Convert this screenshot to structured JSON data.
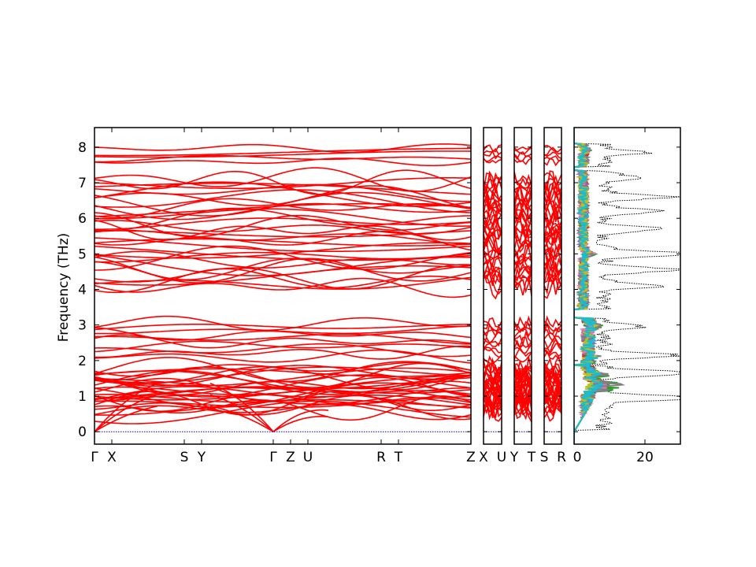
{
  "chart_data": [
    {
      "type": "line",
      "panel": "band-structure",
      "title": "",
      "xlabel": "",
      "ylabel": "Frequency (THz)",
      "ylim": [
        -0.35,
        8.55
      ],
      "yticks": [
        0,
        1,
        2,
        3,
        4,
        5,
        6,
        7,
        8
      ],
      "grid": false,
      "line_color": "#ff0000",
      "zero_line_color": "#0000cc",
      "segments": [
        {
          "path": [
            "Γ",
            "X",
            "S",
            "Y",
            "Γ"
          ],
          "tick_labels": [
            "Γ",
            "X",
            "S",
            "Y",
            "Γ"
          ]
        },
        {
          "path": [
            "Z",
            "U",
            "R",
            "T",
            "Z"
          ],
          "tick_labels": [
            "Z",
            "U",
            "R",
            "T",
            "Z"
          ]
        },
        {
          "path": [
            "X",
            "U"
          ],
          "tick_labels": [
            "X",
            "U"
          ]
        },
        {
          "path": [
            "Y",
            "T"
          ],
          "tick_labels": [
            "Y",
            "T"
          ]
        },
        {
          "path": [
            "S",
            "R"
          ],
          "tick_labels": [
            "S",
            "R"
          ]
        }
      ],
      "x_tick_labels": [
        "Γ",
        "X",
        "S",
        "Y",
        "Γ",
        "Z",
        "U",
        "R",
        "T",
        "Z",
        "X",
        "U",
        "Y",
        "T",
        "S",
        "R"
      ],
      "band_groups": {
        "acoustic_and_low_optical": {
          "frequency_range": [
            0,
            1.85
          ]
        },
        "mid_optical": {
          "frequency_range": [
            1.9,
            3.2
          ]
        },
        "gap": {
          "frequency_range": [
            3.2,
            3.9
          ]
        },
        "upper_optical": {
          "frequency_range": [
            3.4,
            7.3
          ]
        },
        "top_optical": {
          "frequency_range": [
            7.5,
            8.1
          ]
        }
      }
    },
    {
      "type": "line",
      "panel": "density-of-states",
      "title": "",
      "xlabel": "",
      "ylabel": "",
      "xlim": [
        0,
        30
      ],
      "xticks": [
        0,
        20
      ],
      "ylim": [
        -0.35,
        8.55
      ],
      "grid": false,
      "series": [
        {
          "name": "",
          "color": "#000000",
          "style": "dotted"
        },
        {
          "name": "",
          "color": "#1f77b4",
          "style": "solid"
        },
        {
          "name": "",
          "color": "#ff7f0e",
          "style": "solid"
        },
        {
          "name": "",
          "color": "#2ca02c",
          "style": "solid"
        },
        {
          "name": "",
          "color": "#d62728",
          "style": "solid"
        },
        {
          "name": "",
          "color": "#9467bd",
          "style": "solid"
        },
        {
          "name": "",
          "color": "#e377c2",
          "style": "solid"
        },
        {
          "name": "",
          "color": "#7f7f7f",
          "style": "solid"
        },
        {
          "name": "",
          "color": "#bcbd22",
          "style": "solid"
        },
        {
          "name": "",
          "color": "#17becf",
          "style": "solid"
        }
      ],
      "total_dos_peaks": [
        {
          "frequency": 0.95,
          "value": 29
        },
        {
          "frequency": 1.65,
          "value": 28
        },
        {
          "frequency": 2.15,
          "value": 21
        },
        {
          "frequency": 2.95,
          "value": 10
        },
        {
          "frequency": 4.1,
          "value": 16
        },
        {
          "frequency": 4.55,
          "value": 21
        },
        {
          "frequency": 5.0,
          "value": 30
        },
        {
          "frequency": 5.7,
          "value": 17
        },
        {
          "frequency": 6.2,
          "value": 17
        },
        {
          "frequency": 6.6,
          "value": 19
        },
        {
          "frequency": 7.15,
          "value": 11
        },
        {
          "frequency": 7.85,
          "value": 13
        }
      ],
      "partial_dos_peaks": [
        {
          "frequency": 1.2,
          "value": 22
        },
        {
          "frequency": 1.35,
          "value": 25
        },
        {
          "frequency": 1.6,
          "value": 15
        },
        {
          "frequency": 2.1,
          "value": 6
        },
        {
          "frequency": 3.0,
          "value": 11
        },
        {
          "frequency": 5.0,
          "value": 10
        },
        {
          "frequency": 7.9,
          "value": 4
        }
      ]
    }
  ]
}
